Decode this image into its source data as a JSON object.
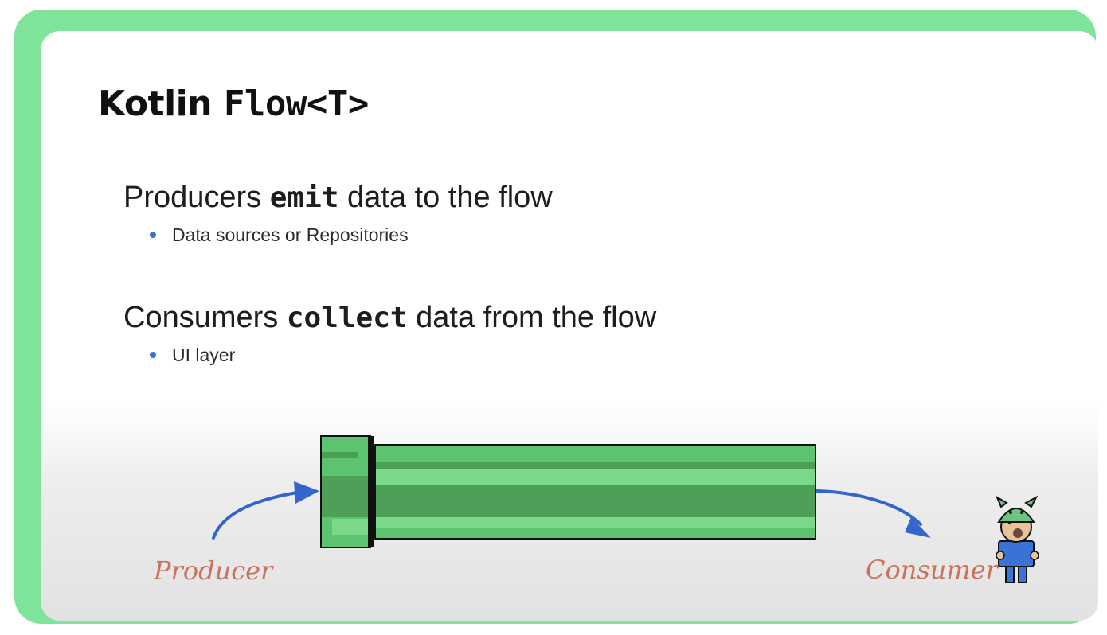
{
  "slide": {
    "title_prefix": "Kotlin ",
    "title_code": "Flow<T>",
    "points": [
      {
        "before": "Producers ",
        "code": "emit",
        "after": " data to the flow",
        "bullet": "Data sources or Repositories"
      },
      {
        "before": "Consumers ",
        "code": "collect",
        "after": " data from the flow",
        "bullet": "UI layer"
      }
    ]
  },
  "diagram": {
    "producer_label": "Producer",
    "consumer_label": "Consumer",
    "label_color": "#c8735e",
    "arrow_color": "#3366cc",
    "pipe_color": "#5cc46e",
    "pipe_dark_color": "#4a9f55",
    "pipe_light_color": "#7ad88a",
    "frame_color": "#7fe39a",
    "icons": [
      "curved-arrow-icon",
      "pipe-icon",
      "android-mascot-icon"
    ]
  }
}
